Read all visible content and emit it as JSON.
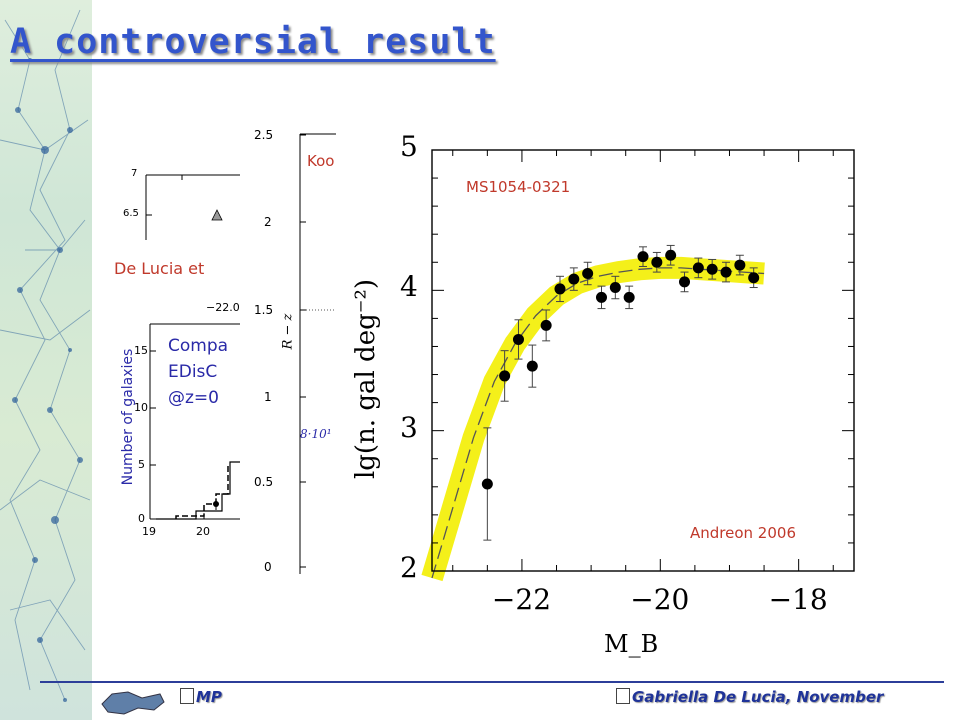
{
  "slide": {
    "title": "A controversial result",
    "footer_left": "MP",
    "footer_right": "Gabriella De Lucia, November"
  },
  "panel_a": {
    "ytick_top": "7",
    "ytick_2": "6.5",
    "caption": "De Lucia et"
  },
  "panel_b": {
    "ylabel": "Number of galaxies",
    "top_tick": "−22.00",
    "text_lines": [
      "Compa",
      "EDisC",
      "@z=0"
    ],
    "yticks": [
      "15",
      "10",
      "5",
      "0"
    ],
    "xticks": [
      "19",
      "20"
    ]
  },
  "panel_c": {
    "yticks": [
      "2.5",
      "2",
      "1.5",
      "1",
      "0.5",
      "0"
    ],
    "ylabel": "R − z",
    "red_label": "Koo",
    "blue_label": "8·10¹"
  },
  "chart_data": {
    "type": "scatter",
    "xlabel": "M_B",
    "ylabel": "lg(n. gal deg⁻²)",
    "xlim": [
      -23.3,
      -17.2
    ],
    "ylim": [
      2,
      5
    ],
    "xticks": [
      "−22",
      "−20",
      "−18"
    ],
    "yticks": [
      "2",
      "3",
      "4",
      "5"
    ],
    "annotations": [
      "MS1054-0321",
      "Andreon 2006"
    ],
    "points": [
      {
        "x": -22.5,
        "y": 2.62,
        "err": 0.4
      },
      {
        "x": -22.25,
        "y": 3.39,
        "err": 0.18
      },
      {
        "x": -22.05,
        "y": 3.65,
        "err": 0.14
      },
      {
        "x": -21.85,
        "y": 3.46,
        "err": 0.15
      },
      {
        "x": -21.65,
        "y": 3.75,
        "err": 0.11
      },
      {
        "x": -21.45,
        "y": 4.01,
        "err": 0.09
      },
      {
        "x": -21.25,
        "y": 4.08,
        "err": 0.08
      },
      {
        "x": -21.05,
        "y": 4.12,
        "err": 0.08
      },
      {
        "x": -20.85,
        "y": 3.95,
        "err": 0.08
      },
      {
        "x": -20.65,
        "y": 4.02,
        "err": 0.08
      },
      {
        "x": -20.45,
        "y": 3.95,
        "err": 0.08
      },
      {
        "x": -20.25,
        "y": 4.24,
        "err": 0.07
      },
      {
        "x": -20.05,
        "y": 4.2,
        "err": 0.07
      },
      {
        "x": -19.85,
        "y": 4.25,
        "err": 0.07
      },
      {
        "x": -19.65,
        "y": 4.06,
        "err": 0.07
      },
      {
        "x": -19.45,
        "y": 4.16,
        "err": 0.07
      },
      {
        "x": -19.25,
        "y": 4.15,
        "err": 0.07
      },
      {
        "x": -19.05,
        "y": 4.13,
        "err": 0.07
      },
      {
        "x": -18.85,
        "y": 4.18,
        "err": 0.07
      },
      {
        "x": -18.65,
        "y": 4.09,
        "err": 0.07
      }
    ],
    "fit_curve": {
      "x": [
        -23.3,
        -23.0,
        -22.7,
        -22.4,
        -22.1,
        -21.8,
        -21.5,
        -21.2,
        -20.9,
        -20.6,
        -20.3,
        -20.0,
        -19.7,
        -19.4,
        -19.1,
        -18.8,
        -18.5
      ],
      "y": [
        1.95,
        2.45,
        2.95,
        3.35,
        3.62,
        3.82,
        3.96,
        4.05,
        4.1,
        4.13,
        4.15,
        4.16,
        4.16,
        4.15,
        4.14,
        4.13,
        4.12
      ]
    },
    "band_color": "#f4f01a",
    "point_color": "#000000"
  }
}
